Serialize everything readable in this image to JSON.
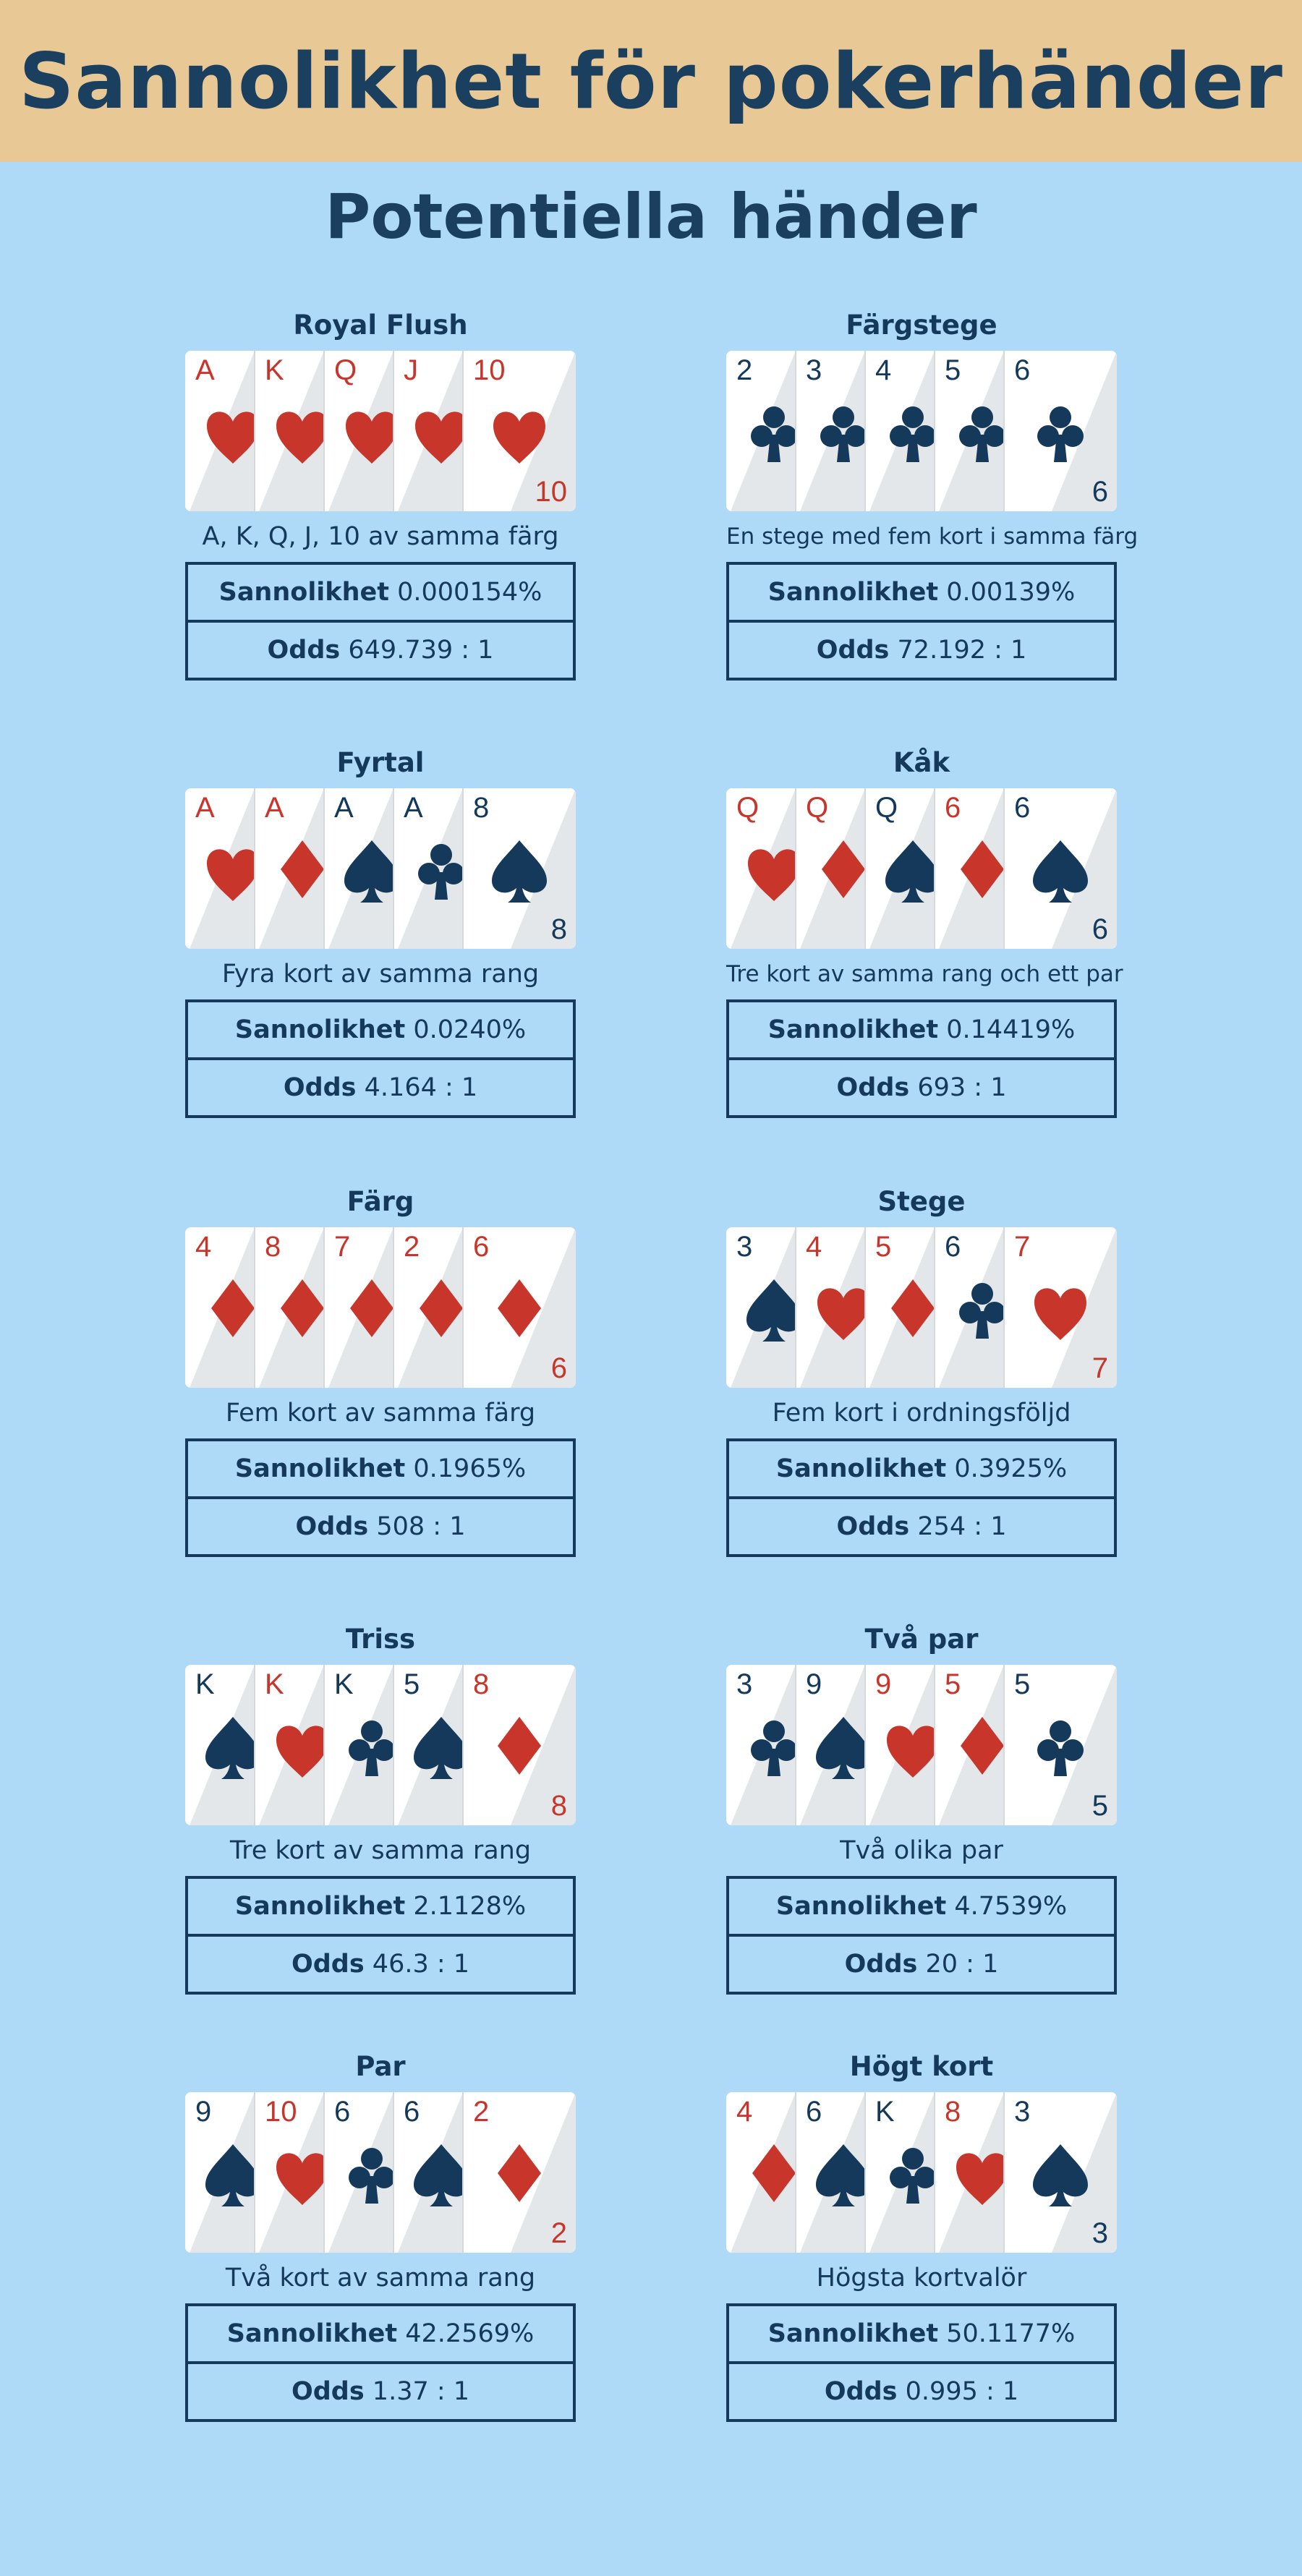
{
  "title": "Sannolikhet för pokerhänder",
  "subtitle": "Potentiella händer",
  "labels": {
    "probability": "Sannolikhet",
    "odds": "Odds"
  },
  "colors": {
    "red": "#c8352b",
    "dark": "#15395a",
    "header_bg": "#e8c895",
    "page_bg": "#aedaf8"
  },
  "hands": [
    {
      "name": "Royal Flush",
      "description": "A, K, Q, J, 10 av samma färg",
      "probability": "0.000154%",
      "odds": "649.739 : 1",
      "cards": [
        {
          "rank": "A",
          "suit": "hearts"
        },
        {
          "rank": "K",
          "suit": "hearts"
        },
        {
          "rank": "Q",
          "suit": "hearts"
        },
        {
          "rank": "J",
          "suit": "hearts"
        },
        {
          "rank": "10",
          "suit": "hearts"
        }
      ]
    },
    {
      "name": "Färgstege",
      "description": "En stege med fem kort i samma färg",
      "probability": "0.00139%",
      "odds": "72.192 : 1",
      "cards": [
        {
          "rank": "2",
          "suit": "clubs"
        },
        {
          "rank": "3",
          "suit": "clubs"
        },
        {
          "rank": "4",
          "suit": "clubs"
        },
        {
          "rank": "5",
          "suit": "clubs"
        },
        {
          "rank": "6",
          "suit": "clubs"
        }
      ]
    },
    {
      "name": "Fyrtal",
      "description": "Fyra kort av samma rang",
      "probability": "0.0240%",
      "odds": "4.164 : 1",
      "cards": [
        {
          "rank": "A",
          "suit": "hearts"
        },
        {
          "rank": "A",
          "suit": "diamonds"
        },
        {
          "rank": "A",
          "suit": "spades"
        },
        {
          "rank": "A",
          "suit": "clubs"
        },
        {
          "rank": "8",
          "suit": "spades"
        }
      ]
    },
    {
      "name": "Kåk",
      "description": "Tre kort av samma rang och ett par",
      "probability": "0.14419%",
      "odds": "693 : 1",
      "cards": [
        {
          "rank": "Q",
          "suit": "hearts"
        },
        {
          "rank": "Q",
          "suit": "diamonds"
        },
        {
          "rank": "Q",
          "suit": "spades"
        },
        {
          "rank": "6",
          "suit": "diamonds"
        },
        {
          "rank": "6",
          "suit": "spades"
        }
      ]
    },
    {
      "name": "Färg",
      "description": "Fem kort av samma färg",
      "probability": "0.1965%",
      "odds": "508 : 1",
      "cards": [
        {
          "rank": "4",
          "suit": "diamonds"
        },
        {
          "rank": "8",
          "suit": "diamonds"
        },
        {
          "rank": "7",
          "suit": "diamonds"
        },
        {
          "rank": "2",
          "suit": "diamonds"
        },
        {
          "rank": "6",
          "suit": "diamonds"
        }
      ]
    },
    {
      "name": "Stege",
      "description": "Fem kort i ordningsföljd",
      "probability": "0.3925%",
      "odds": "254 : 1",
      "cards": [
        {
          "rank": "3",
          "suit": "spades"
        },
        {
          "rank": "4",
          "suit": "hearts"
        },
        {
          "rank": "5",
          "suit": "diamonds"
        },
        {
          "rank": "6",
          "suit": "clubs"
        },
        {
          "rank": "7",
          "suit": "hearts"
        }
      ]
    },
    {
      "name": "Triss",
      "description": "Tre kort av samma rang",
      "probability": "2.1128%",
      "odds": "46.3 : 1",
      "cards": [
        {
          "rank": "K",
          "suit": "spades"
        },
        {
          "rank": "K",
          "suit": "hearts"
        },
        {
          "rank": "K",
          "suit": "clubs"
        },
        {
          "rank": "5",
          "suit": "spades"
        },
        {
          "rank": "8",
          "suit": "diamonds"
        }
      ]
    },
    {
      "name": "Två par",
      "description": "Två olika par",
      "probability": "4.7539%",
      "odds": "20 : 1",
      "cards": [
        {
          "rank": "3",
          "suit": "clubs"
        },
        {
          "rank": "9",
          "suit": "spades"
        },
        {
          "rank": "9",
          "suit": "hearts"
        },
        {
          "rank": "5",
          "suit": "diamonds"
        },
        {
          "rank": "5",
          "suit": "clubs"
        }
      ]
    },
    {
      "name": "Par",
      "description": "Två kort av samma rang",
      "probability": "42.2569%",
      "odds": "1.37 : 1",
      "cards": [
        {
          "rank": "9",
          "suit": "spades"
        },
        {
          "rank": "10",
          "suit": "hearts"
        },
        {
          "rank": "6",
          "suit": "clubs"
        },
        {
          "rank": "6",
          "suit": "spades"
        },
        {
          "rank": "2",
          "suit": "diamonds"
        }
      ]
    },
    {
      "name": "Högt kort",
      "description": "Högsta kortvalör",
      "probability": "50.1177%",
      "odds": "0.995 : 1",
      "cards": [
        {
          "rank": "4",
          "suit": "diamonds"
        },
        {
          "rank": "6",
          "suit": "spades"
        },
        {
          "rank": "K",
          "suit": "clubs"
        },
        {
          "rank": "8",
          "suit": "hearts"
        },
        {
          "rank": "3",
          "suit": "spades"
        }
      ]
    }
  ]
}
